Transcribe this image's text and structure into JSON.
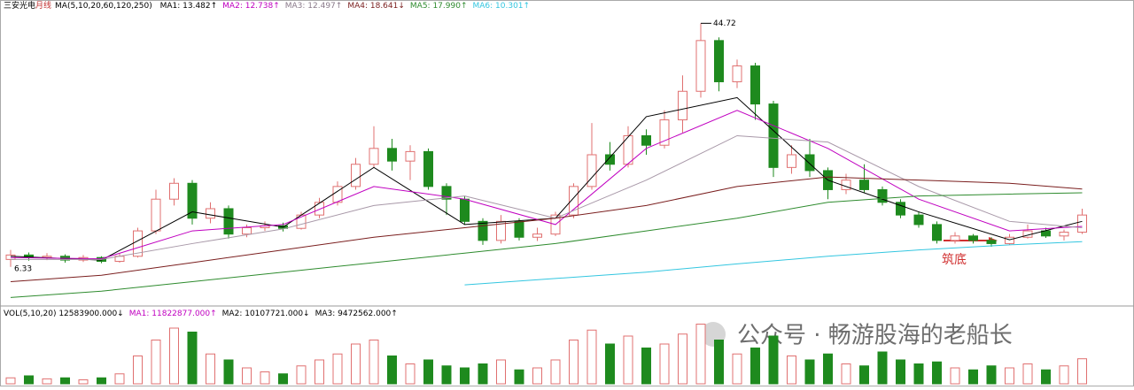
{
  "chart_data": {
    "type": "candlestick",
    "title": "三安光电",
    "period": "月线",
    "ma_params": "MA(5,10,20,60,120,250)",
    "ma_header": [
      {
        "label": "MA1: 13.482↑",
        "color": "#000000"
      },
      {
        "label": "MA2: 12.738↑",
        "color": "#c000c0"
      },
      {
        "label": "MA3: 12.497↑",
        "color": "#8a7a8a"
      },
      {
        "label": "MA4: 18.641↓",
        "color": "#7a1e1e"
      },
      {
        "label": "MA5: 17.990↑",
        "color": "#2e8b2e"
      },
      {
        "label": "MA6: 10.301↑",
        "color": "#33c6e0"
      }
    ],
    "vol_header": [
      {
        "label": "VOL(5,10,20) 12583900.000↓",
        "color": "#000000"
      },
      {
        "label": "MA1: 11822877.000↑",
        "color": "#c000c0"
      },
      {
        "label": "MA2: 10107721.000↓",
        "color": "#000000"
      },
      {
        "label": "MA3: 9472562.000↑",
        "color": "#000000"
      }
    ],
    "up_color": "#e07070",
    "down_color": "#1e8a1e",
    "ylim": [
      1,
      46.3
    ],
    "vlim": [
      0,
      32000000
    ],
    "candles": [
      [
        7.5,
        8.2,
        9.0,
        6.33
      ],
      [
        8.2,
        7.8,
        8.6,
        7.3
      ],
      [
        7.8,
        8.0,
        8.5,
        7.4
      ],
      [
        8.0,
        7.4,
        8.3,
        7.0
      ],
      [
        7.4,
        7.8,
        8.2,
        7.1
      ],
      [
        7.8,
        7.2,
        8.0,
        6.9
      ],
      [
        7.2,
        8.0,
        8.4,
        7.0
      ],
      [
        8.0,
        12.0,
        12.5,
        7.8
      ],
      [
        12.0,
        17.0,
        18.5,
        11.5
      ],
      [
        17.0,
        19.5,
        20.3,
        16.0
      ],
      [
        19.5,
        14.0,
        20.0,
        13.0
      ],
      [
        14.0,
        15.5,
        16.5,
        13.2
      ],
      [
        15.5,
        11.5,
        16.0,
        10.8
      ],
      [
        11.5,
        12.5,
        13.0,
        11.0
      ],
      [
        12.5,
        12.8,
        13.5,
        12.0
      ],
      [
        12.8,
        12.4,
        13.3,
        11.9
      ],
      [
        12.4,
        14.5,
        15.0,
        12.2
      ],
      [
        14.5,
        16.5,
        17.2,
        14.0
      ],
      [
        16.5,
        19.0,
        19.8,
        16.0
      ],
      [
        19.0,
        22.5,
        23.5,
        18.5
      ],
      [
        22.5,
        25.0,
        28.5,
        22.0
      ],
      [
        25.0,
        23.0,
        26.5,
        21.5
      ],
      [
        23.0,
        24.5,
        25.5,
        20.0
      ],
      [
        24.5,
        19.0,
        25.0,
        18.5
      ],
      [
        19.0,
        17.0,
        19.5,
        14.5
      ],
      [
        17.0,
        13.5,
        17.5,
        13.0
      ],
      [
        13.5,
        10.5,
        14.0,
        9.8
      ],
      [
        10.5,
        13.5,
        14.5,
        10.0
      ],
      [
        13.5,
        11.0,
        14.0,
        10.5
      ],
      [
        11.0,
        11.5,
        12.5,
        10.4
      ],
      [
        11.5,
        14.5,
        15.0,
        11.2
      ],
      [
        14.5,
        19.0,
        19.5,
        14.0
      ],
      [
        19.0,
        24.0,
        29.0,
        18.5
      ],
      [
        24.0,
        22.5,
        26.0,
        21.5
      ],
      [
        22.5,
        27.0,
        28.5,
        22.0
      ],
      [
        27.0,
        25.5,
        28.0,
        24.0
      ],
      [
        25.5,
        29.5,
        31.0,
        25.0
      ],
      [
        29.5,
        34.0,
        36.5,
        27.5
      ],
      [
        34.0,
        42.0,
        44.72,
        33.0
      ],
      [
        42.0,
        35.5,
        42.5,
        34.0
      ],
      [
        35.5,
        38.0,
        39.0,
        34.5
      ],
      [
        38.0,
        32.0,
        38.5,
        29.5
      ],
      [
        32.0,
        22.0,
        32.5,
        20.5
      ],
      [
        22.0,
        24.0,
        25.5,
        21.0
      ],
      [
        24.0,
        21.5,
        26.5,
        20.5
      ],
      [
        21.5,
        18.5,
        22.0,
        17.0
      ],
      [
        18.5,
        20.0,
        21.0,
        17.8
      ],
      [
        20.0,
        18.5,
        22.5,
        18.0
      ],
      [
        18.5,
        16.5,
        19.0,
        16.0
      ],
      [
        16.5,
        14.5,
        17.0,
        14.0
      ],
      [
        14.5,
        13.0,
        15.0,
        12.5
      ],
      [
        13.0,
        10.5,
        13.5,
        10.0
      ],
      [
        10.5,
        11.2,
        11.8,
        10.0
      ],
      [
        11.2,
        10.5,
        11.5,
        10.0
      ],
      [
        10.5,
        10.0,
        11.0,
        9.5
      ],
      [
        10.0,
        11.0,
        11.5,
        9.8
      ],
      [
        11.0,
        12.0,
        13.0,
        10.8
      ],
      [
        12.0,
        11.2,
        12.5,
        10.9
      ],
      [
        11.2,
        11.8,
        12.2,
        10.5
      ],
      [
        11.8,
        14.5,
        15.5,
        11.5
      ]
    ],
    "volumes": [
      3000000,
      4000000,
      2500000,
      3000000,
      2000000,
      3000000,
      5000000,
      14000000,
      22000000,
      28000000,
      26000000,
      15000000,
      12000000,
      8000000,
      6000000,
      5000000,
      9000000,
      12000000,
      15000000,
      20000000,
      22000000,
      14000000,
      10000000,
      12000000,
      9000000,
      8000000,
      10000000,
      12000000,
      7000000,
      8000000,
      12000000,
      22000000,
      27000000,
      20000000,
      24000000,
      18000000,
      20000000,
      25000000,
      30000000,
      22000000,
      15000000,
      18000000,
      24000000,
      14000000,
      12000000,
      15000000,
      10000000,
      9000000,
      16000000,
      12000000,
      10000000,
      11000000,
      8000000,
      7000000,
      9000000,
      8000000,
      10000000,
      7000000,
      9000000,
      12583900
    ],
    "ma_index": [
      0,
      5,
      10,
      15,
      20,
      25,
      30,
      35,
      40,
      45,
      50,
      55,
      59
    ],
    "ma_lines": [
      {
        "color": "#000000",
        "values": [
          8,
          7.4,
          15,
          12.6,
          22,
          13,
          14,
          30,
          33,
          20,
          15,
          10.6,
          13.5
        ]
      },
      {
        "color": "#c000c0",
        "values": [
          7.8,
          7.6,
          12,
          13,
          19,
          17,
          13,
          25,
          31,
          25,
          17,
          12,
          12.7
        ]
      },
      {
        "color": "#a898a8",
        "values": [
          7.5,
          7.5,
          10,
          12.3,
          16,
          17.5,
          14,
          20,
          27,
          26,
          19,
          13.5,
          12.5
        ]
      },
      {
        "color": "#7a1e1e",
        "values": [
          4,
          5,
          7,
          9,
          11,
          12.5,
          14,
          16,
          19,
          20.5,
          20,
          19.5,
          18.6
        ]
      },
      {
        "color": "#2e8b2e",
        "values": [
          1.5,
          2.5,
          4,
          5.5,
          7,
          8.5,
          10,
          12,
          14,
          16.5,
          17.5,
          17.8,
          18.0
        ]
      },
      {
        "color": "#33c6e0",
        "values": [
          null,
          null,
          null,
          null,
          null,
          3.5,
          4.5,
          5.5,
          6.8,
          8.0,
          9.0,
          9.8,
          10.3
        ]
      }
    ],
    "high_label": "44.72",
    "low_label": "6.33",
    "annotation": "筑底",
    "watermark": "公众号 · 畅游股海的老船长"
  }
}
